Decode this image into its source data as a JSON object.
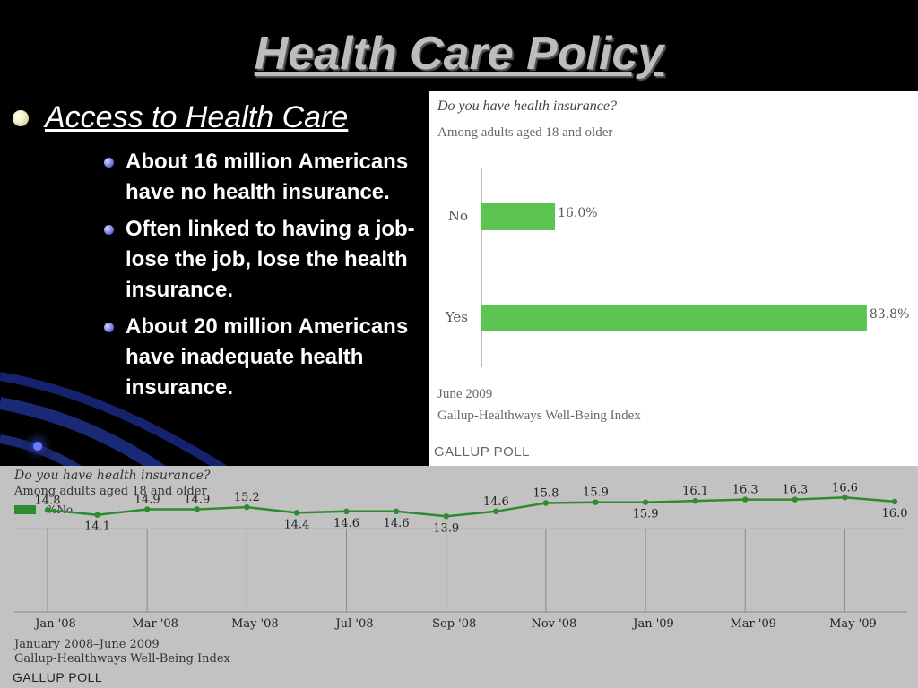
{
  "slide": {
    "title": "Health Care Policy",
    "main_bullet": "Access to Health Care",
    "sub_bullets": [
      "About 16 million Americans have no health insurance.",
      "Often linked to having a job- lose the job, lose the health insurance.",
      "About 20 million Americans have inadequate health insurance."
    ]
  },
  "top_chart": {
    "question": "Do you have health insurance?",
    "subtitle": "Among adults aged 18 and older",
    "footer_date": "June 2009",
    "footer_source": "Gallup-Healthways Well-Being Index",
    "brand": "GALLUP POLL",
    "bar_color": "#5cc451"
  },
  "bottom_chart": {
    "question": "Do you have health insurance?",
    "subtitle": "Among adults aged 18 and older",
    "legend": "%No",
    "footer_date": "January 2008–June 2009",
    "footer_source": "Gallup-Healthways Well-Being Index",
    "brand": "GALLUP POLL",
    "line_color": "#2e8b2e"
  },
  "chart_data": [
    {
      "type": "bar",
      "title": "Do you have health insurance?",
      "subtitle": "Among adults aged 18 and older",
      "categories": [
        "No",
        "Yes"
      ],
      "values": [
        16.0,
        83.8
      ],
      "value_labels": [
        "16.0%",
        "83.8%"
      ],
      "orientation": "horizontal",
      "xlim": [
        0,
        100
      ],
      "grid": false
    },
    {
      "type": "line",
      "title": "Do you have health insurance?",
      "subtitle": "Among adults aged 18 and older",
      "x_tick_labels": [
        "Jan '08",
        "Mar '08",
        "May '08",
        "Jul '08",
        "Sep '08",
        "Nov '08",
        "Jan '09",
        "Mar '09",
        "May '09"
      ],
      "series": [
        {
          "name": "%No",
          "values": [
            14.8,
            14.1,
            14.9,
            14.9,
            15.2,
            14.4,
            14.6,
            14.6,
            13.9,
            14.6,
            15.8,
            15.9,
            15.9,
            16.1,
            16.3,
            16.3,
            16.6,
            16.0
          ]
        }
      ],
      "label_side": [
        "up",
        "down",
        "up",
        "up",
        "up",
        "down",
        "down",
        "down",
        "down",
        "up",
        "up",
        "up",
        "down",
        "up",
        "up",
        "up",
        "up",
        "down"
      ],
      "ylim": [
        13.0,
        17.5
      ],
      "grid": "vertical"
    }
  ]
}
